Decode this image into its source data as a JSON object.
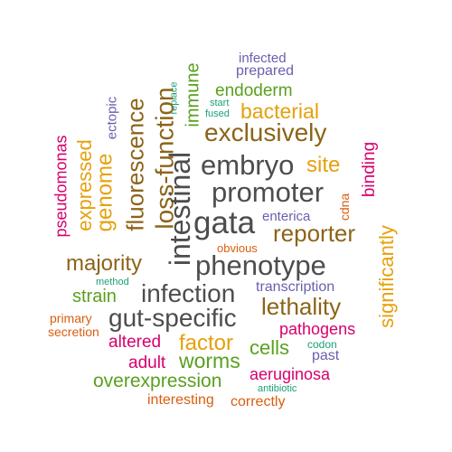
{
  "palette": {
    "gray": "#4d4d4d",
    "brown": "#8c6418",
    "gold": "#e6a00a",
    "magenta": "#d6006e",
    "green": "#5aa01e",
    "purple": "#6a5fae",
    "orange": "#d95f0e",
    "teal": "#1b9e77"
  },
  "words": [
    {
      "text": "infected",
      "color": "purple"
    },
    {
      "text": "prepared",
      "color": "purple"
    },
    {
      "text": "endoderm",
      "color": "green"
    },
    {
      "text": "start",
      "color": "teal"
    },
    {
      "text": "fused",
      "color": "teal"
    },
    {
      "text": "replace",
      "color": "teal"
    },
    {
      "text": "immune",
      "color": "green"
    },
    {
      "text": "ectopic",
      "color": "purple"
    },
    {
      "text": "fluorescence",
      "color": "brown"
    },
    {
      "text": "loss-function",
      "color": "brown"
    },
    {
      "text": "bacterial",
      "color": "gold"
    },
    {
      "text": "exclusively",
      "color": "brown"
    },
    {
      "text": "pseudomonas",
      "color": "magenta"
    },
    {
      "text": "expressed",
      "color": "gold"
    },
    {
      "text": "genome",
      "color": "gold"
    },
    {
      "text": "intestinal",
      "color": "gray"
    },
    {
      "text": "embryo",
      "color": "gray"
    },
    {
      "text": "site",
      "color": "gold"
    },
    {
      "text": "binding",
      "color": "magenta"
    },
    {
      "text": "promoter",
      "color": "gray"
    },
    {
      "text": "cdna",
      "color": "orange"
    },
    {
      "text": "gata",
      "color": "gray"
    },
    {
      "text": "enterica",
      "color": "purple"
    },
    {
      "text": "reporter",
      "color": "brown"
    },
    {
      "text": "significantly",
      "color": "gold"
    },
    {
      "text": "obvious",
      "color": "orange"
    },
    {
      "text": "majority",
      "color": "brown"
    },
    {
      "text": "phenotype",
      "color": "gray"
    },
    {
      "text": "method",
      "color": "teal"
    },
    {
      "text": "infection",
      "color": "gray"
    },
    {
      "text": "transcription",
      "color": "purple"
    },
    {
      "text": "strain",
      "color": "green"
    },
    {
      "text": "lethality",
      "color": "brown"
    },
    {
      "text": "gut-specific",
      "color": "gray"
    },
    {
      "text": "primary",
      "color": "orange"
    },
    {
      "text": "secretion",
      "color": "orange"
    },
    {
      "text": "pathogens",
      "color": "magenta"
    },
    {
      "text": "altered",
      "color": "magenta"
    },
    {
      "text": "factor",
      "color": "gold"
    },
    {
      "text": "cells",
      "color": "green"
    },
    {
      "text": "codon",
      "color": "teal"
    },
    {
      "text": "past",
      "color": "purple"
    },
    {
      "text": "adult",
      "color": "magenta"
    },
    {
      "text": "worms",
      "color": "green"
    },
    {
      "text": "aeruginosa",
      "color": "magenta"
    },
    {
      "text": "overexpression",
      "color": "green"
    },
    {
      "text": "antibiotic",
      "color": "teal"
    },
    {
      "text": "interesting",
      "color": "orange"
    },
    {
      "text": "correctly",
      "color": "orange"
    }
  ]
}
